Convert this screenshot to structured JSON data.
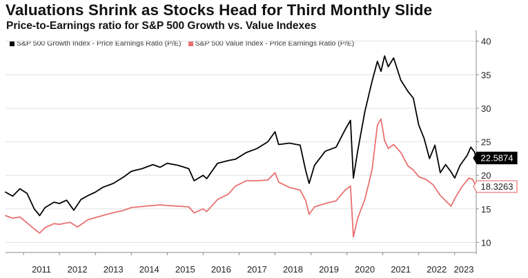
{
  "title": "Valuations Shrink as Stocks Head for Third Monthly Slide",
  "subtitle": "Price-to-Earnings ratio for S&P 500 Growth vs. Value Indexes",
  "colors": {
    "growth": "#000000",
    "value": "#e8706f",
    "grid": "#e1e1e1",
    "axis": "#888888"
  },
  "chart_data": {
    "type": "line",
    "x_range": [
      2010.5,
      2023.6
    ],
    "ylim": [
      8.5,
      41
    ],
    "y_ticks": [
      10,
      15,
      20,
      25,
      30,
      35,
      40
    ],
    "x_ticks": [
      "2011",
      "2012",
      "2013",
      "2014",
      "2015",
      "2016",
      "2017",
      "2018",
      "2019",
      "2020",
      "2021",
      "2022",
      "2023"
    ],
    "y_axis_side": "right",
    "grid": "horizontal",
    "legend_position": "top-left",
    "series": [
      {
        "name": "S&P 500 Growth Index - Price Earnings Ratio (P/E)",
        "color": "#000000",
        "last_value_label": "22.5874",
        "points": [
          [
            2010.5,
            17.5
          ],
          [
            2010.7,
            16.9
          ],
          [
            2010.9,
            18.0
          ],
          [
            2011.1,
            17.3
          ],
          [
            2011.3,
            15.0
          ],
          [
            2011.45,
            14.0
          ],
          [
            2011.6,
            15.2
          ],
          [
            2011.85,
            16.0
          ],
          [
            2012.0,
            15.8
          ],
          [
            2012.2,
            16.3
          ],
          [
            2012.4,
            14.8
          ],
          [
            2012.6,
            16.4
          ],
          [
            2012.8,
            17.0
          ],
          [
            2013.0,
            17.5
          ],
          [
            2013.2,
            18.2
          ],
          [
            2013.5,
            18.8
          ],
          [
            2013.8,
            19.8
          ],
          [
            2014.0,
            20.6
          ],
          [
            2014.3,
            21.0
          ],
          [
            2014.6,
            21.6
          ],
          [
            2014.8,
            21.2
          ],
          [
            2015.0,
            21.8
          ],
          [
            2015.3,
            21.5
          ],
          [
            2015.6,
            21.0
          ],
          [
            2015.75,
            19.2
          ],
          [
            2016.0,
            20.0
          ],
          [
            2016.1,
            19.5
          ],
          [
            2016.4,
            21.8
          ],
          [
            2016.7,
            22.2
          ],
          [
            2016.9,
            22.4
          ],
          [
            2017.2,
            23.4
          ],
          [
            2017.5,
            24.0
          ],
          [
            2017.8,
            25.0
          ],
          [
            2018.0,
            26.5
          ],
          [
            2018.1,
            24.6
          ],
          [
            2018.4,
            24.8
          ],
          [
            2018.7,
            24.5
          ],
          [
            2018.85,
            20.8
          ],
          [
            2018.95,
            18.8
          ],
          [
            2019.1,
            21.5
          ],
          [
            2019.4,
            23.6
          ],
          [
            2019.7,
            24.2
          ],
          [
            2019.95,
            26.8
          ],
          [
            2020.1,
            28.2
          ],
          [
            2020.18,
            19.6
          ],
          [
            2020.3,
            23.6
          ],
          [
            2020.5,
            29.5
          ],
          [
            2020.7,
            34.0
          ],
          [
            2020.85,
            37.0
          ],
          [
            2020.95,
            35.5
          ],
          [
            2021.05,
            37.8
          ],
          [
            2021.15,
            36.2
          ],
          [
            2021.3,
            37.5
          ],
          [
            2021.5,
            34.2
          ],
          [
            2021.7,
            32.5
          ],
          [
            2021.85,
            31.5
          ],
          [
            2022.0,
            27.5
          ],
          [
            2022.15,
            25.5
          ],
          [
            2022.3,
            22.5
          ],
          [
            2022.45,
            24.5
          ],
          [
            2022.6,
            20.4
          ],
          [
            2022.75,
            21.6
          ],
          [
            2022.9,
            20.5
          ],
          [
            2023.0,
            19.6
          ],
          [
            2023.15,
            21.5
          ],
          [
            2023.35,
            23.0
          ],
          [
            2023.45,
            24.2
          ],
          [
            2023.55,
            23.5
          ],
          [
            2023.6,
            22.5874
          ]
        ]
      },
      {
        "name": "S&P 500 Value Index - Price Earnings Ratio (P/E)",
        "color": "#e8706f",
        "last_value_label": "18.3263",
        "points": [
          [
            2010.5,
            14.0
          ],
          [
            2010.7,
            13.6
          ],
          [
            2010.9,
            13.8
          ],
          [
            2011.1,
            12.9
          ],
          [
            2011.3,
            12.0
          ],
          [
            2011.45,
            11.4
          ],
          [
            2011.6,
            12.2
          ],
          [
            2011.85,
            12.8
          ],
          [
            2012.0,
            12.7
          ],
          [
            2012.3,
            13.0
          ],
          [
            2012.5,
            12.3
          ],
          [
            2012.8,
            13.4
          ],
          [
            2013.0,
            13.7
          ],
          [
            2013.4,
            14.3
          ],
          [
            2013.8,
            14.8
          ],
          [
            2014.0,
            15.2
          ],
          [
            2014.4,
            15.4
          ],
          [
            2014.8,
            15.6
          ],
          [
            2015.0,
            15.5
          ],
          [
            2015.3,
            15.4
          ],
          [
            2015.6,
            15.3
          ],
          [
            2015.75,
            14.4
          ],
          [
            2016.0,
            15.0
          ],
          [
            2016.1,
            14.6
          ],
          [
            2016.4,
            16.4
          ],
          [
            2016.7,
            17.2
          ],
          [
            2016.9,
            18.4
          ],
          [
            2017.2,
            19.2
          ],
          [
            2017.5,
            19.2
          ],
          [
            2017.8,
            19.3
          ],
          [
            2018.0,
            20.4
          ],
          [
            2018.1,
            19.0
          ],
          [
            2018.4,
            18.2
          ],
          [
            2018.7,
            17.8
          ],
          [
            2018.85,
            16.3
          ],
          [
            2018.95,
            14.2
          ],
          [
            2019.1,
            15.3
          ],
          [
            2019.4,
            15.8
          ],
          [
            2019.7,
            16.2
          ],
          [
            2019.95,
            17.8
          ],
          [
            2020.1,
            18.4
          ],
          [
            2020.18,
            10.8
          ],
          [
            2020.3,
            13.6
          ],
          [
            2020.5,
            16.4
          ],
          [
            2020.7,
            20.8
          ],
          [
            2020.85,
            27.5
          ],
          [
            2020.95,
            28.4
          ],
          [
            2021.05,
            25.2
          ],
          [
            2021.15,
            24.0
          ],
          [
            2021.3,
            24.6
          ],
          [
            2021.5,
            23.4
          ],
          [
            2021.7,
            21.4
          ],
          [
            2021.85,
            20.8
          ],
          [
            2022.0,
            19.8
          ],
          [
            2022.2,
            19.4
          ],
          [
            2022.4,
            18.6
          ],
          [
            2022.6,
            17.0
          ],
          [
            2022.75,
            16.2
          ],
          [
            2022.9,
            15.4
          ],
          [
            2023.0,
            16.5
          ],
          [
            2023.2,
            18.3
          ],
          [
            2023.4,
            19.6
          ],
          [
            2023.5,
            19.4
          ],
          [
            2023.6,
            18.3263
          ]
        ]
      }
    ]
  }
}
